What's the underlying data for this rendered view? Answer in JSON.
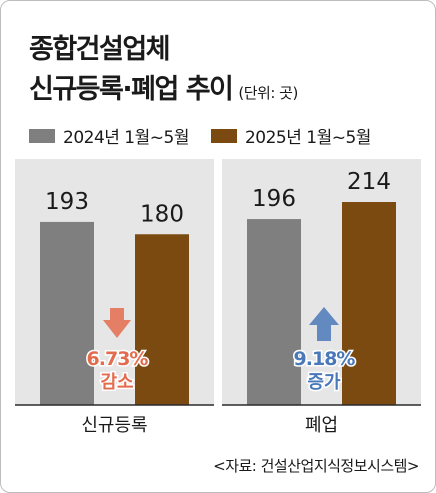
{
  "title_line1": "종합건설업체",
  "title_line2": "신규등록·폐업 추이",
  "unit": "(단위: 곳)",
  "source": "<자료: 건설산업지식정보시스템>",
  "colors": {
    "series_2024": "#7f7f7f",
    "series_2025": "#7b4a10",
    "panel": "#e6e6e6",
    "decrease": "#e36c4e",
    "increase": "#4a78b8"
  },
  "chart_data": {
    "type": "bar",
    "categories": [
      "신규등록",
      "폐업"
    ],
    "series": [
      {
        "name": "2024년 1월~5월",
        "values": [
          193,
          196
        ]
      },
      {
        "name": "2025년 1월~5월",
        "values": [
          180,
          214
        ]
      }
    ],
    "ylim": [
      0,
      214
    ],
    "annotations": [
      {
        "category": "신규등록",
        "value": "6.73%",
        "label": "감소",
        "direction": "down"
      },
      {
        "category": "폐업",
        "value": "9.18%",
        "label": "증가",
        "direction": "up"
      }
    ]
  }
}
